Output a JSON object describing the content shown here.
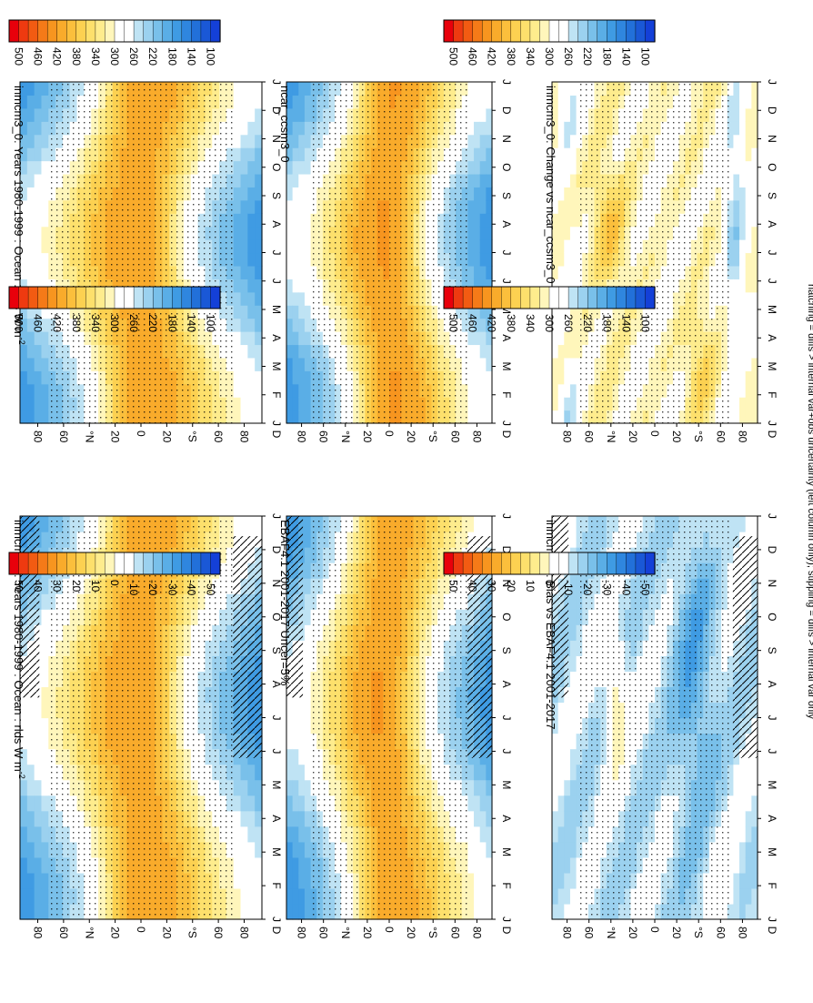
{
  "figure": {
    "footnote": "hatching = diffs > internal var+obs uncertainty (left column only); stippling = diffs > internal var only",
    "orientation": "rotated 90 degrees clockwise"
  },
  "chart_data": [
    {
      "id": "model-left",
      "type": "heatmap",
      "title": "inmcm3_0: Years 1980-1999 : Ocean : rlds W m",
      "title_sup": "-2",
      "x_ticks": [
        "J",
        "F",
        "M",
        "A",
        "M",
        "J",
        "J",
        "A",
        "S",
        "O",
        "N",
        "D",
        "J"
      ],
      "y_ticks": [
        "80",
        "60",
        "°N",
        "20",
        "0",
        "20",
        "°S",
        "60",
        "80"
      ],
      "scale": "abs",
      "field": "model",
      "overlay": "hatch+stipple"
    },
    {
      "id": "model-right",
      "type": "heatmap",
      "title": "inmcm3_0: Years 1980-1999 : Ocean : rlds W m",
      "title_sup": "-2",
      "x_ticks": [
        "J",
        "F",
        "M",
        "A",
        "M",
        "J",
        "J",
        "A",
        "S",
        "O",
        "N",
        "D",
        "J"
      ],
      "y_ticks": [
        "80",
        "60",
        "°N",
        "20",
        "0",
        "20",
        "°S",
        "60",
        "80"
      ],
      "scale": "abs",
      "field": "model",
      "overlay": "stipple"
    },
    {
      "id": "obs",
      "type": "heatmap",
      "title": "EBAF4.1 2001-2017 Uncer=5%",
      "title_sup": "",
      "x_ticks": [
        "J",
        "F",
        "M",
        "A",
        "M",
        "J",
        "J",
        "A",
        "S",
        "O",
        "N",
        "D",
        "J"
      ],
      "y_ticks": [
        "80",
        "60",
        "°N",
        "20",
        "0",
        "20",
        "°S",
        "60",
        "80"
      ],
      "scale": "abs",
      "field": "obs",
      "overlay": "hatch+stipple"
    },
    {
      "id": "ref",
      "type": "heatmap",
      "title": "ncar_ccsm3_0",
      "title_sup": "",
      "x_ticks": [
        "J",
        "F",
        "M",
        "A",
        "M",
        "J",
        "J",
        "A",
        "S",
        "O",
        "N",
        "D",
        "J"
      ],
      "y_ticks": [
        "80",
        "60",
        "°N",
        "20",
        "0",
        "20",
        "°S",
        "60",
        "80"
      ],
      "scale": "abs",
      "field": "ref",
      "overlay": "stipple"
    },
    {
      "id": "bias",
      "type": "heatmap",
      "title": "inmcm3_0: Bias vs EBAF4.1 2001-2017",
      "title_sup": "",
      "x_ticks": [
        "J",
        "F",
        "M",
        "A",
        "M",
        "J",
        "J",
        "A",
        "S",
        "O",
        "N",
        "D",
        "J"
      ],
      "y_ticks": [
        "80",
        "60",
        "°N",
        "20",
        "0",
        "20",
        "°S",
        "60",
        "80"
      ],
      "scale": "diff",
      "field": "bias",
      "overlay": "hatch+stipple"
    },
    {
      "id": "change",
      "type": "heatmap",
      "title": "inmcm3_0: Change vs ncar_ccsm3_0",
      "title_sup": "",
      "x_ticks": [
        "J",
        "F",
        "M",
        "A",
        "M",
        "J",
        "J",
        "A",
        "S",
        "O",
        "N",
        "D",
        "J"
      ],
      "y_ticks": [
        "80",
        "60",
        "°N",
        "20",
        "0",
        "20",
        "°S",
        "60",
        "80"
      ],
      "scale": "diff",
      "field": "change",
      "overlay": "stipple"
    }
  ],
  "colorbars": [
    {
      "id": "cb-abs-1",
      "scale": "abs",
      "labels": [
        "500",
        "460",
        "420",
        "380",
        "340",
        "300",
        "260",
        "220",
        "180",
        "140",
        "100"
      ]
    },
    {
      "id": "cb-abs-2",
      "scale": "abs",
      "labels": [
        "500",
        "460",
        "420",
        "380",
        "340",
        "300",
        "260",
        "220",
        "180",
        "140",
        "100"
      ]
    },
    {
      "id": "cb-abs-3",
      "scale": "abs",
      "labels": [
        "500",
        "460",
        "420",
        "380",
        "340",
        "300",
        "260",
        "220",
        "180",
        "140",
        "100"
      ]
    },
    {
      "id": "cb-abs-4",
      "scale": "abs",
      "labels": [
        "500",
        "460",
        "420",
        "380",
        "340",
        "300",
        "260",
        "220",
        "180",
        "140",
        "100"
      ]
    },
    {
      "id": "cb-diff-1",
      "scale": "diff",
      "labels": [
        "50",
        "40",
        "30",
        "20",
        "10",
        "0",
        "-10",
        "-20",
        "-30",
        "-40",
        "-50"
      ]
    },
    {
      "id": "cb-diff-2",
      "scale": "diff",
      "labels": [
        "50",
        "40",
        "30",
        "20",
        "10",
        "0",
        "-10",
        "-20",
        "-30",
        "-40",
        "-50"
      ]
    }
  ],
  "scales": {
    "abs": {
      "min": 80,
      "max": 520,
      "step": 20,
      "colors_high_to_low": [
        "#e8000b",
        "#ee3a10",
        "#f25b12",
        "#f57a18",
        "#f7951f",
        "#f9ab2b",
        "#fbbf3c",
        "#fcd151",
        "#fde06c",
        "#feec8d",
        "#fff6bb",
        "#ffffff",
        "#ffffff",
        "#bfe3f4",
        "#9bd1ef",
        "#79c0ea",
        "#5aaee6",
        "#3f9be3",
        "#2f86df",
        "#2270d9",
        "#1a58d6",
        "#1440d8"
      ]
    },
    "diff": {
      "min": -55,
      "max": 55,
      "step": 5,
      "colors_high_to_low": [
        "#e8000b",
        "#ee3a10",
        "#f25b12",
        "#f57a18",
        "#f7951f",
        "#f9ab2b",
        "#fbbf3c",
        "#fcd151",
        "#fde06c",
        "#feec8d",
        "#fff6bb",
        "#ffffff",
        "#ffffff",
        "#bfe3f4",
        "#9bd1ef",
        "#79c0ea",
        "#5aaee6",
        "#3f9be3",
        "#2f86df",
        "#2270d9",
        "#1a58d6",
        "#1440d8"
      ]
    }
  }
}
